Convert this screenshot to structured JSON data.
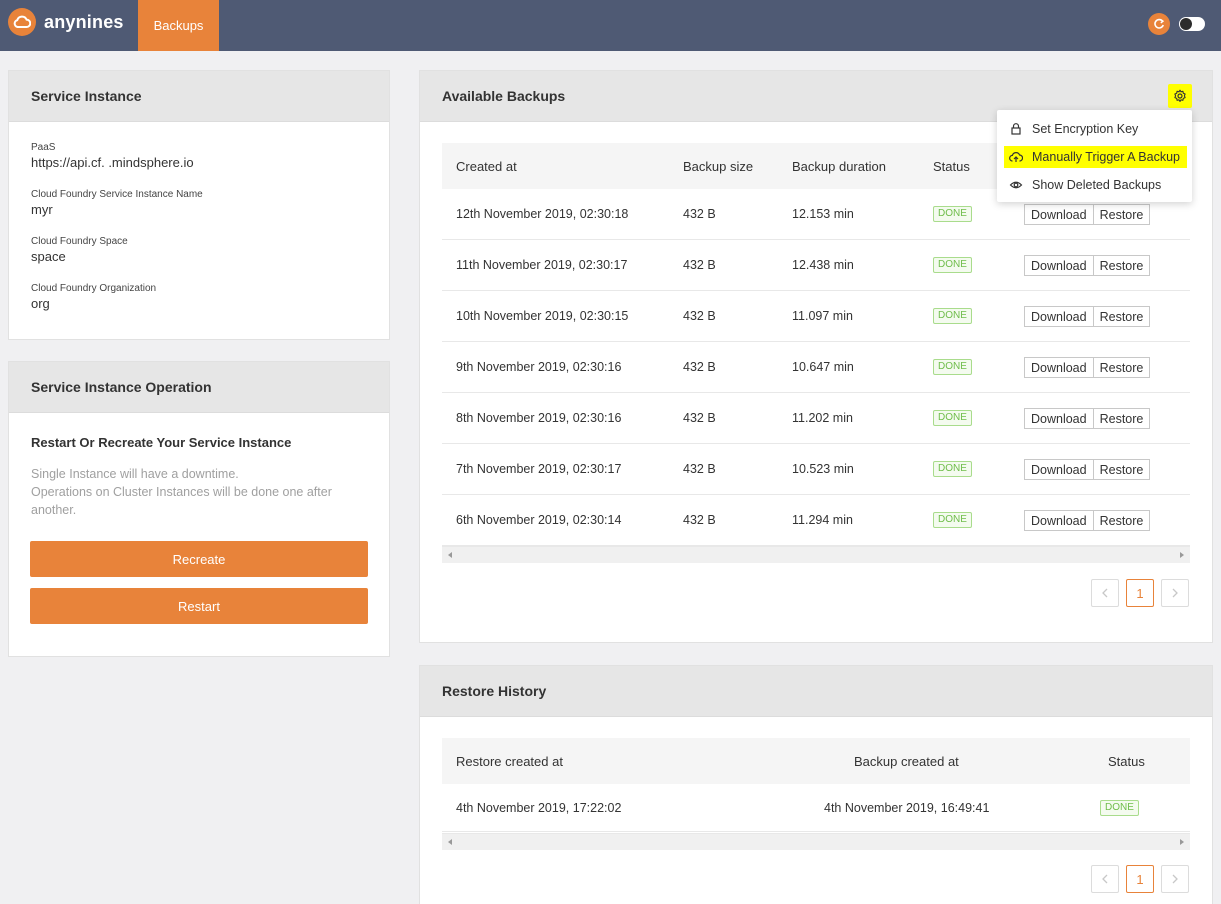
{
  "header": {
    "brand": "anynines",
    "nav_tab": "Backups"
  },
  "service_instance": {
    "title": "Service Instance",
    "fields": [
      {
        "label": "PaaS",
        "value": "https://api.cf.          .mindsphere.io"
      },
      {
        "label": "Cloud Foundry Service Instance Name",
        "value": "myr"
      },
      {
        "label": "Cloud Foundry Space",
        "value": "space"
      },
      {
        "label": "Cloud Foundry Organization",
        "value": "org"
      }
    ]
  },
  "operation": {
    "title": "Service Instance Operation",
    "subtitle": "Restart Or Recreate Your Service Instance",
    "note_1": "Single Instance will have a downtime.",
    "note_2": "Operations on Cluster Instances will be done one after",
    "note_3": "another.",
    "recreate_label": "Recreate",
    "restart_label": "Restart"
  },
  "backups": {
    "title": "Available Backups",
    "columns": [
      "Created at",
      "Backup size",
      "Backup duration",
      "Status"
    ],
    "rows": [
      {
        "created": "12th November 2019, 02:30:18",
        "size": "432 B",
        "duration": "12.153 min",
        "status": "DONE"
      },
      {
        "created": "11th November 2019, 02:30:17",
        "size": "432 B",
        "duration": "12.438 min",
        "status": "DONE"
      },
      {
        "created": "10th November 2019, 02:30:15",
        "size": "432 B",
        "duration": "11.097 min",
        "status": "DONE"
      },
      {
        "created": "9th November 2019, 02:30:16",
        "size": "432 B",
        "duration": "10.647 min",
        "status": "DONE"
      },
      {
        "created": "8th November 2019, 02:30:16",
        "size": "432 B",
        "duration": "11.202 min",
        "status": "DONE"
      },
      {
        "created": "7th November 2019, 02:30:17",
        "size": "432 B",
        "duration": "10.523 min",
        "status": "DONE"
      },
      {
        "created": "6th November 2019, 02:30:14",
        "size": "432 B",
        "duration": "11.294 min",
        "status": "DONE"
      }
    ],
    "download_label": "Download",
    "restore_label": "Restore",
    "page": "1"
  },
  "dropdown": {
    "items": [
      "Set Encryption Key",
      "Manually Trigger A Backup",
      "Show Deleted Backups"
    ],
    "highlight_color": "#ffff00"
  },
  "restore_history": {
    "title": "Restore History",
    "columns": [
      "Restore created at",
      "Backup created at",
      "Status"
    ],
    "rows": [
      {
        "restore_created": "4th November 2019, 17:22:02",
        "backup_created": "4th November 2019, 16:49:41",
        "status": "DONE"
      }
    ],
    "page": "1"
  },
  "colors": {
    "accent": "#e8833a",
    "topbar": "#4f5a74",
    "done_green": "#6fbd4a"
  }
}
